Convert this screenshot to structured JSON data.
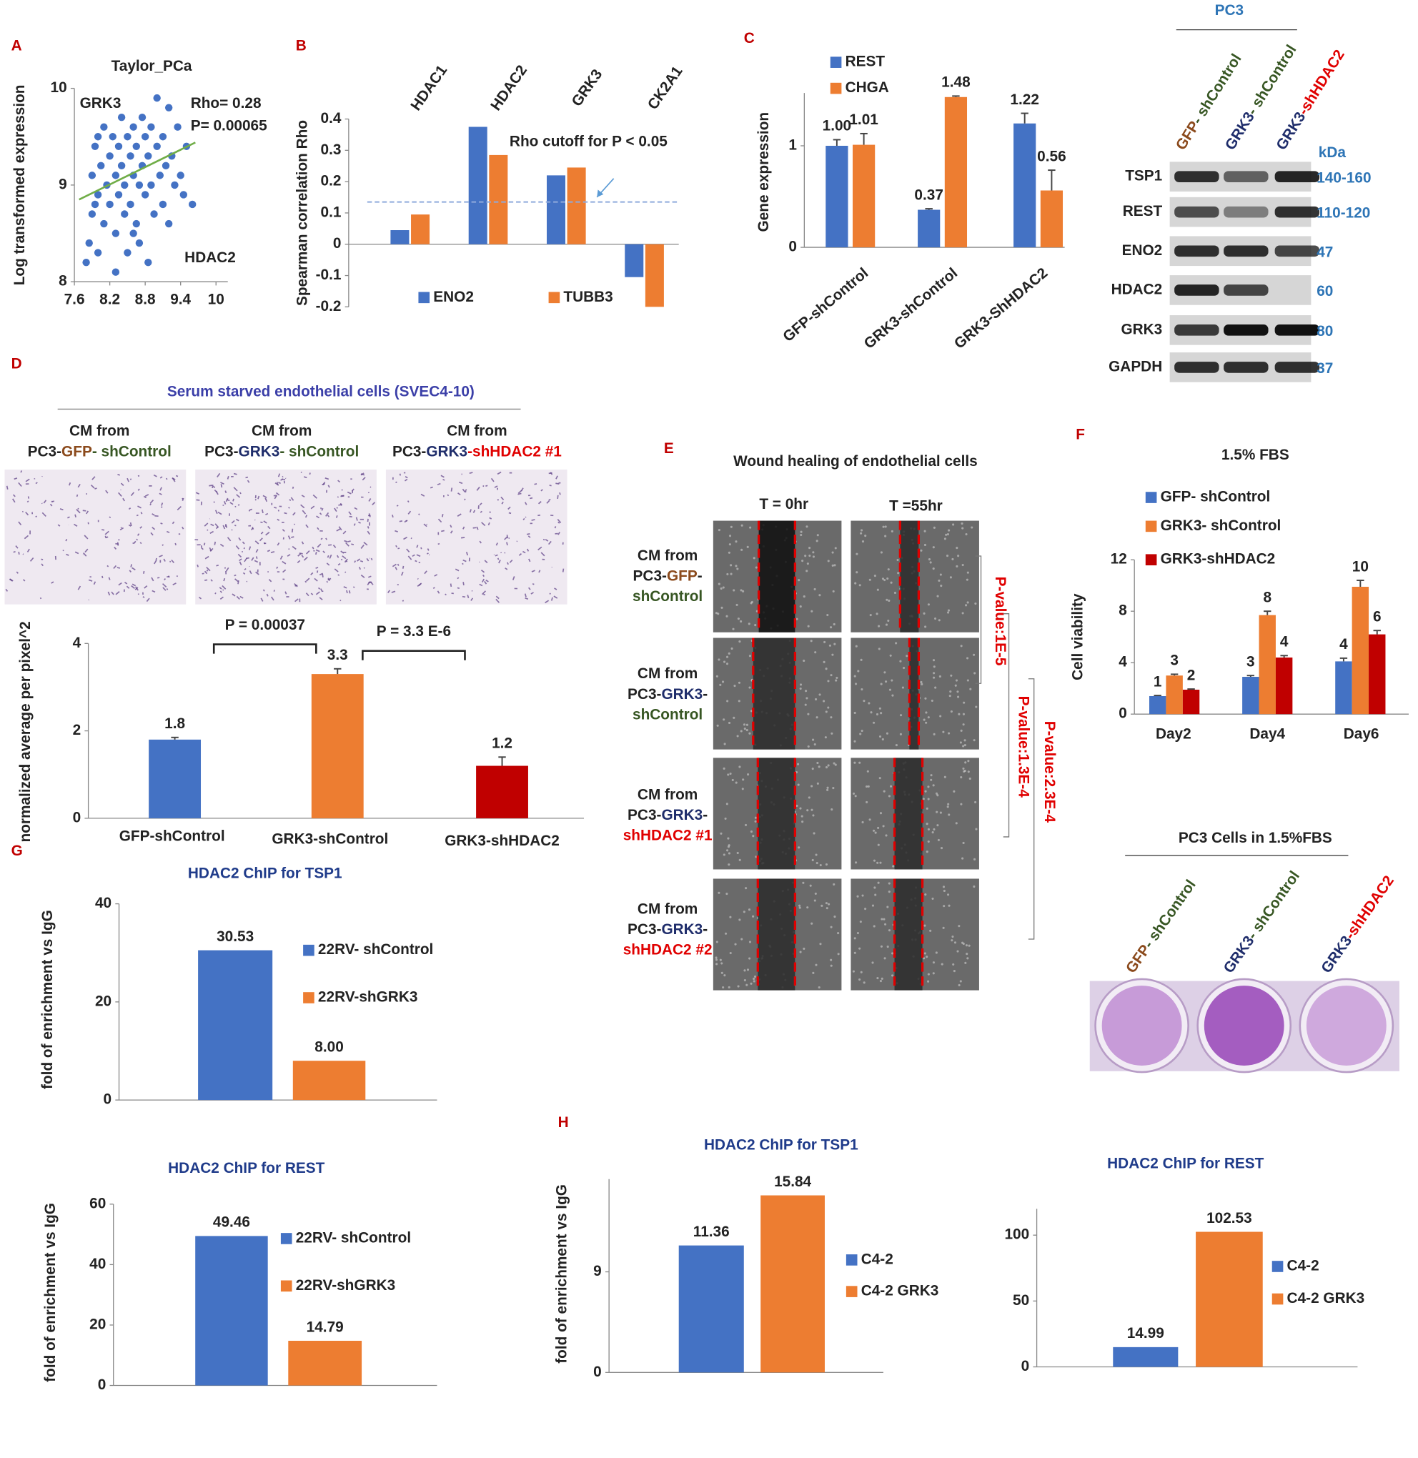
{
  "figure": {
    "panel_labels": [
      "A",
      "B",
      "C",
      "D",
      "E",
      "F",
      "G",
      "H"
    ],
    "blot": {
      "title": "PC3",
      "unit": "kDa",
      "lanes": [
        [
          {
            "text": "GFP",
            "color": "#8b4a1c"
          },
          {
            "text": "- shControl",
            "color": "#375623"
          }
        ],
        [
          {
            "text": "GRK3",
            "color": "#1f2d6b"
          },
          {
            "text": "- shControl",
            "color": "#375623"
          }
        ],
        [
          {
            "text": "GRK3",
            "color": "#1f2d6b"
          },
          {
            "text": "-shHDAC2",
            "color": "#e00000"
          }
        ]
      ],
      "rows": [
        {
          "protein": "TSP1",
          "kda": "140-160"
        },
        {
          "protein": "REST",
          "kda": "110-120"
        },
        {
          "protein": "ENO2",
          "kda": "47"
        },
        {
          "protein": "HDAC2",
          "kda": "60"
        },
        {
          "protein": "GRK3",
          "kda": "80"
        },
        {
          "protein": "GAPDH",
          "kda": "37"
        }
      ]
    },
    "invasion": {
      "title": "Serum starved endothelial cells (SVEC4-10)",
      "captions": [
        [
          [
            {
              "text": "CM from",
              "color": "#222222"
            }
          ],
          [
            {
              "text": "PC3-",
              "color": "#222222"
            },
            {
              "text": "GFP",
              "color": "#8b4a1c"
            },
            {
              "text": "- shControl",
              "color": "#375623"
            }
          ]
        ],
        [
          [
            {
              "text": "CM from",
              "color": "#222222"
            }
          ],
          [
            {
              "text": "PC3-",
              "color": "#222222"
            },
            {
              "text": "GRK3",
              "color": "#1f2d6b"
            },
            {
              "text": "- shControl",
              "color": "#375623"
            }
          ]
        ],
        [
          [
            {
              "text": "CM from",
              "color": "#222222"
            }
          ],
          [
            {
              "text": "PC3-",
              "color": "#222222"
            },
            {
              "text": "GRK3",
              "color": "#1f2d6b"
            },
            {
              "text": "-shHDAC2 #1",
              "color": "#e00000"
            }
          ]
        ]
      ]
    },
    "wound": {
      "title": "Wound healing of endothelial cells",
      "columns": [
        "T = 0hr",
        "T =55hr"
      ],
      "rows": [
        [
          [
            {
              "text": "CM from",
              "color": "#222222"
            }
          ],
          [
            {
              "text": "PC3-",
              "color": "#222222"
            },
            {
              "text": "GFP",
              "color": "#8b4a1c"
            },
            {
              "text": "-",
              "color": "#222222"
            }
          ],
          [
            {
              "text": "shControl",
              "color": "#375623"
            }
          ]
        ],
        [
          [
            {
              "text": "CM from",
              "color": "#222222"
            }
          ],
          [
            {
              "text": "PC3-",
              "color": "#222222"
            },
            {
              "text": "GRK3",
              "color": "#1f2d6b"
            },
            {
              "text": "-",
              "color": "#222222"
            }
          ],
          [
            {
              "text": "shControl",
              "color": "#375623"
            }
          ]
        ],
        [
          [
            {
              "text": "CM from",
              "color": "#222222"
            }
          ],
          [
            {
              "text": "PC3-",
              "color": "#222222"
            },
            {
              "text": "GRK3",
              "color": "#1f2d6b"
            },
            {
              "text": "-",
              "color": "#222222"
            }
          ],
          [
            {
              "text": "shHDAC2 #1",
              "color": "#e00000"
            }
          ]
        ],
        [
          [
            {
              "text": "CM from",
              "color": "#222222"
            }
          ],
          [
            {
              "text": "PC3-",
              "color": "#222222"
            },
            {
              "text": "GRK3",
              "color": "#1f2d6b"
            },
            {
              "text": "-",
              "color": "#222222"
            }
          ],
          [
            {
              "text": "shHDAC2 #2",
              "color": "#e00000"
            }
          ]
        ]
      ],
      "p_values": [
        "P-value:1E-5",
        "P-value:1.3E-4",
        "P-value:2.3E-4"
      ]
    },
    "plate": {
      "title": "PC3 Cells in 1.5%FBS",
      "lanes": [
        [
          {
            "text": "GFP",
            "color": "#8b4a1c"
          },
          {
            "text": "- shControl",
            "color": "#375623"
          }
        ],
        [
          {
            "text": "GRK3",
            "color": "#1f2d6b"
          },
          {
            "text": "- shControl",
            "color": "#375623"
          }
        ],
        [
          {
            "text": "GRK3",
            "color": "#1f2d6b"
          },
          {
            "text": "-shHDAC2",
            "color": "#e00000"
          }
        ]
      ]
    }
  },
  "chart_data": [
    {
      "type": "scatter",
      "title": "Taylor_PCa",
      "y_label": "Log transformed expression",
      "annotations": [
        "GRK3",
        "Rho= 0.28",
        "P= 0.00065",
        "HDAC2"
      ],
      "x": [
        7.8,
        7.85,
        7.9,
        7.9,
        7.95,
        8.0,
        8.0,
        8.05,
        8.1,
        8.1,
        8.15,
        8.2,
        8.2,
        8.25,
        8.3,
        8.3,
        8.35,
        8.35,
        8.4,
        8.4,
        8.45,
        8.45,
        8.5,
        8.5,
        8.55,
        8.55,
        8.6,
        8.6,
        8.65,
        8.65,
        8.7,
        8.7,
        8.75,
        8.75,
        8.8,
        8.8,
        8.85,
        8.85,
        8.9,
        8.9,
        8.95,
        9.0,
        9.0,
        9.05,
        9.1,
        9.1,
        9.15,
        9.2,
        9.2,
        9.25,
        9.3,
        9.35,
        9.4,
        9.45,
        9.5,
        9.6,
        8.0,
        8.3,
        8.6,
        7.95
      ],
      "y": [
        8.2,
        8.4,
        8.7,
        9.1,
        9.4,
        9.5,
        8.9,
        9.2,
        8.6,
        9.6,
        9.0,
        9.3,
        8.8,
        9.5,
        8.5,
        9.1,
        9.4,
        8.9,
        9.7,
        9.2,
        8.7,
        9.0,
        9.5,
        8.3,
        9.3,
        8.8,
        9.6,
        9.1,
        8.6,
        9.4,
        9.0,
        8.4,
        9.2,
        9.7,
        8.9,
        9.5,
        8.2,
        9.3,
        9.0,
        9.6,
        8.7,
        9.4,
        9.9,
        9.1,
        8.8,
        9.5,
        9.2,
        9.8,
        8.6,
        9.3,
        9.0,
        9.6,
        9.1,
        8.9,
        9.4,
        8.8,
        8.3,
        8.1,
        8.5,
        8.8
      ],
      "color": "#4472c4",
      "trend": {
        "x": [
          7.68,
          9.65
        ],
        "y": [
          8.85,
          9.44
        ],
        "color": "#70ad47"
      },
      "xlim": [
        7.6,
        10.2
      ],
      "xticks": [
        7.6,
        8.2,
        8.8,
        9.4,
        10
      ],
      "ylim": [
        8,
        10
      ],
      "yticks": [
        8,
        9,
        10
      ]
    },
    {
      "type": "bar",
      "y_label": "Spearman correlation Rho",
      "categories": [
        "HDAC1",
        "HDAC2",
        "GRK3",
        "CK2A1"
      ],
      "series": [
        {
          "name": "ENO2",
          "color": "#4472c4",
          "values": [
            0.045,
            0.375,
            0.22,
            -0.105
          ]
        },
        {
          "name": "TUBB3",
          "color": "#ed7d31",
          "values": [
            0.095,
            0.285,
            0.245,
            -0.2
          ]
        }
      ],
      "ylim": [
        -0.2,
        0.4
      ],
      "yticks": [
        -0.2,
        -0.1,
        0,
        0.1,
        0.2,
        0.3,
        0.4
      ],
      "reference_line": {
        "value": 0.135,
        "label": "Rho cutoff for P < 0.05"
      }
    },
    {
      "type": "bar",
      "y_label": "Gene expression",
      "categories": [
        "GFP-shControl",
        "GRK3-shControl",
        "GRK3-ShHDAC2"
      ],
      "series": [
        {
          "name": "REST",
          "color": "#4472c4",
          "values": [
            1.0,
            0.37,
            1.22
          ],
          "errors": [
            0.06,
            0.01,
            0.1
          ],
          "value_labels": [
            "1.00",
            "0.37",
            "1.22"
          ]
        },
        {
          "name": "CHGA",
          "color": "#ed7d31",
          "values": [
            1.01,
            1.48,
            0.56
          ],
          "errors": [
            0.11,
            0.01,
            0.2
          ],
          "value_labels": [
            "1.01",
            "1.48",
            "0.56"
          ]
        }
      ],
      "ylim": [
        0,
        1.52
      ],
      "yticks": [
        0,
        1
      ]
    },
    {
      "type": "bar",
      "y_label": "normalized average per pixel^2",
      "categories": [
        "GFP-shControl",
        "GRK3-shControl",
        "GRK3-shHDAC2"
      ],
      "values": [
        1.8,
        3.3,
        1.2
      ],
      "errors": [
        0.05,
        0.12,
        0.2
      ],
      "colors": [
        "#4472c4",
        "#ed7d31",
        "#c00000"
      ],
      "comparisons": [
        "P = 0.00037",
        "P = 3.3 E-6"
      ],
      "ylim": [
        0,
        4
      ],
      "yticks": [
        0,
        2,
        4
      ]
    },
    {
      "type": "bar",
      "title": "1.5% FBS",
      "y_label": "Cell viability",
      "categories": [
        "Day2",
        "Day4",
        "Day6"
      ],
      "series": [
        {
          "name": "GFP- shControl",
          "color": "#4472c4",
          "values": [
            1.4,
            2.9,
            4.1
          ],
          "errors": [
            0.05,
            0.1,
            0.25
          ],
          "value_labels": [
            "1",
            "3",
            "4"
          ]
        },
        {
          "name": "GRK3- shControl",
          "color": "#ed7d31",
          "values": [
            3.0,
            7.7,
            9.9
          ],
          "errors": [
            0.1,
            0.3,
            0.5
          ],
          "value_labels": [
            "3",
            "8",
            "10"
          ]
        },
        {
          "name": "GRK3-shHDAC2",
          "color": "#c00000",
          "values": [
            1.9,
            4.4,
            6.2
          ],
          "errors": [
            0.05,
            0.15,
            0.3
          ],
          "value_labels": [
            "2",
            "4",
            "6"
          ]
        }
      ],
      "ylim": [
        0,
        12
      ],
      "yticks": [
        0,
        4,
        8,
        12
      ]
    },
    {
      "type": "bar",
      "title": "HDAC2 ChIP for TSP1",
      "y_label": "fold of enrichment vs IgG",
      "series": [
        {
          "name": "22RV-  shControl",
          "color": "#4472c4",
          "values": [
            30.53
          ],
          "value_labels": [
            "30.53"
          ]
        },
        {
          "name": "22RV-shGRK3",
          "color": "#ed7d31",
          "values": [
            8.0
          ],
          "value_labels": [
            "8.00"
          ]
        }
      ],
      "ylim": [
        0,
        40
      ],
      "yticks": [
        0,
        20,
        40
      ]
    },
    {
      "type": "bar",
      "title": "HDAC2 ChIP for REST",
      "y_label": "fold of enrichment vs IgG",
      "series": [
        {
          "name": "22RV- shControl",
          "color": "#4472c4",
          "values": [
            49.46
          ]
        },
        {
          "name": "22RV-shGRK3",
          "color": "#ed7d31",
          "values": [
            14.79
          ]
        }
      ],
      "ylim": [
        0,
        60
      ],
      "yticks": [
        0,
        20,
        40,
        60
      ]
    },
    {
      "type": "bar",
      "title": "HDAC2 ChIP for TSP1",
      "y_label": "fold of enrichment vs IgG",
      "series": [
        {
          "name": "C4-2",
          "color": "#4472c4",
          "values": [
            11.36
          ]
        },
        {
          "name": "C4-2 GRK3",
          "color": "#ed7d31",
          "values": [
            15.84
          ]
        }
      ],
      "ylim": [
        0,
        17.3
      ],
      "yticks": [
        0,
        9
      ]
    },
    {
      "type": "bar",
      "title": "HDAC2 ChIP for REST",
      "series": [
        {
          "name": "C4-2",
          "color": "#4472c4",
          "values": [
            14.99
          ]
        },
        {
          "name": "C4-2 GRK3",
          "color": "#ed7d31",
          "values": [
            102.53
          ]
        }
      ],
      "ylim": [
        0,
        120
      ],
      "yticks": [
        0,
        50,
        100
      ]
    }
  ]
}
